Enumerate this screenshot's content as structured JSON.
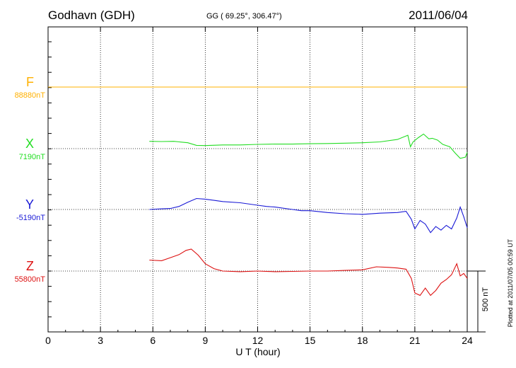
{
  "header": {
    "station": "Godhavn (GDH)",
    "coords": "GG ( 69.25°, 306.47°)",
    "date": "2011/06/04"
  },
  "footer": {
    "plotted": "Plotted at 2011/07/05 00:59 UT",
    "scale_label": "500 nT"
  },
  "chart_data": {
    "type": "line",
    "title": "Godhavn (GDH)",
    "xlabel": "U T (hour)",
    "ylabel": "",
    "xlim": [
      0,
      24
    ],
    "xticks": [
      0,
      3,
      6,
      9,
      12,
      15,
      18,
      21,
      24
    ],
    "grid": true,
    "scale_bar_nT": 500,
    "channels": [
      {
        "name": "F",
        "baseline_label": "88880nT",
        "color": "#ffb000",
        "points": [
          [
            0,
            0
          ],
          [
            24,
            0
          ]
        ]
      },
      {
        "name": "X",
        "baseline_label": "7190nT",
        "color": "#22dd22",
        "points": [
          [
            5.8,
            60
          ],
          [
            6.5,
            58
          ],
          [
            7.2,
            60
          ],
          [
            8.0,
            48
          ],
          [
            8.5,
            27
          ],
          [
            9.0,
            25
          ],
          [
            10.0,
            30
          ],
          [
            11.0,
            30
          ],
          [
            12.0,
            35
          ],
          [
            13.0,
            38
          ],
          [
            14.0,
            37
          ],
          [
            15.0,
            40
          ],
          [
            16.0,
            42
          ],
          [
            17.0,
            45
          ],
          [
            18.0,
            48
          ],
          [
            19.0,
            55
          ],
          [
            20.0,
            75
          ],
          [
            20.6,
            110
          ],
          [
            20.75,
            15
          ],
          [
            20.9,
            55
          ],
          [
            21.2,
            90
          ],
          [
            21.5,
            120
          ],
          [
            21.8,
            80
          ],
          [
            22.0,
            85
          ],
          [
            22.3,
            70
          ],
          [
            22.6,
            35
          ],
          [
            23.0,
            15
          ],
          [
            23.3,
            -35
          ],
          [
            23.6,
            -80
          ],
          [
            23.9,
            -70
          ],
          [
            24.0,
            -30
          ]
        ]
      },
      {
        "name": "Y",
        "baseline_label": "-5190nT",
        "color": "#1a1ad6",
        "points": [
          [
            5.8,
            0
          ],
          [
            6.5,
            5
          ],
          [
            7.0,
            8
          ],
          [
            7.5,
            25
          ],
          [
            8.0,
            60
          ],
          [
            8.5,
            90
          ],
          [
            9.0,
            85
          ],
          [
            9.5,
            75
          ],
          [
            10.0,
            65
          ],
          [
            11.0,
            55
          ],
          [
            12.0,
            35
          ],
          [
            12.5,
            25
          ],
          [
            13.0,
            20
          ],
          [
            14.0,
            0
          ],
          [
            14.5,
            -10
          ],
          [
            15.0,
            -10
          ],
          [
            16.0,
            -25
          ],
          [
            17.0,
            -35
          ],
          [
            18.0,
            -40
          ],
          [
            19.0,
            -30
          ],
          [
            20.0,
            -25
          ],
          [
            20.5,
            -15
          ],
          [
            20.8,
            -80
          ],
          [
            21.0,
            -160
          ],
          [
            21.3,
            -90
          ],
          [
            21.6,
            -120
          ],
          [
            21.9,
            -190
          ],
          [
            22.2,
            -140
          ],
          [
            22.5,
            -170
          ],
          [
            22.8,
            -130
          ],
          [
            23.1,
            -160
          ],
          [
            23.4,
            -70
          ],
          [
            23.6,
            20
          ],
          [
            23.8,
            -60
          ],
          [
            24.0,
            -150
          ]
        ]
      },
      {
        "name": "Z",
        "baseline_label": "55800nT",
        "color": "#dd1111",
        "points": [
          [
            5.8,
            90
          ],
          [
            6.5,
            85
          ],
          [
            7.0,
            110
          ],
          [
            7.5,
            135
          ],
          [
            7.9,
            170
          ],
          [
            8.2,
            180
          ],
          [
            8.6,
            130
          ],
          [
            9.0,
            60
          ],
          [
            9.5,
            20
          ],
          [
            10.0,
            0
          ],
          [
            11.0,
            -5
          ],
          [
            12.0,
            0
          ],
          [
            13.0,
            -5
          ],
          [
            14.0,
            -3
          ],
          [
            15.0,
            0
          ],
          [
            16.0,
            0
          ],
          [
            17.0,
            5
          ],
          [
            18.0,
            10
          ],
          [
            18.8,
            35
          ],
          [
            19.5,
            30
          ],
          [
            20.0,
            25
          ],
          [
            20.5,
            15
          ],
          [
            20.8,
            -60
          ],
          [
            21.0,
            -180
          ],
          [
            21.3,
            -200
          ],
          [
            21.6,
            -140
          ],
          [
            21.9,
            -200
          ],
          [
            22.2,
            -160
          ],
          [
            22.5,
            -100
          ],
          [
            22.8,
            -70
          ],
          [
            23.1,
            -30
          ],
          [
            23.4,
            60
          ],
          [
            23.6,
            -40
          ],
          [
            23.8,
            -20
          ],
          [
            24.0,
            -60
          ]
        ]
      }
    ]
  }
}
